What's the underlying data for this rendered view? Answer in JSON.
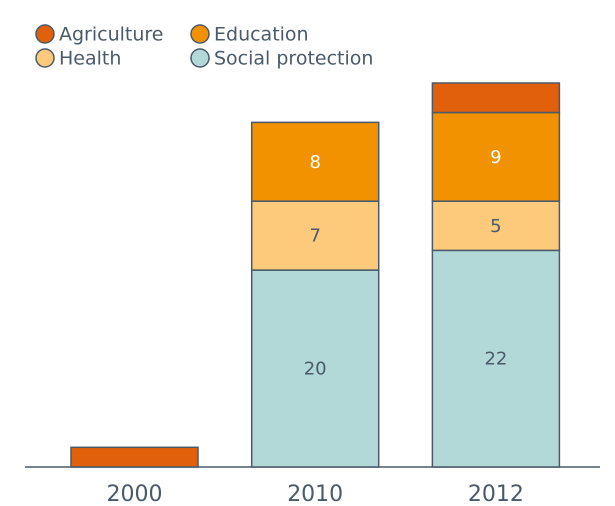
{
  "chart_data": {
    "type": "stacked_bar",
    "categories": [
      "2000",
      "2010",
      "2012"
    ],
    "series": [
      {
        "name": "Agriculture",
        "color": "#e0600c",
        "label_color": "#4a5a6a",
        "values": [
          2,
          0,
          3
        ]
      },
      {
        "name": "Education",
        "color": "#f39200",
        "label_color": "#ffffff",
        "values": [
          0,
          8,
          9
        ]
      },
      {
        "name": "Health",
        "color": "#fdc97b",
        "label_color": "#4a5a6a",
        "values": [
          0,
          7,
          5
        ]
      },
      {
        "name": "Social protection",
        "color": "#b2d9d8",
        "label_color": "#4a5a6a",
        "values": [
          0,
          20,
          22
        ]
      }
    ],
    "ylim": [
      0,
      39
    ]
  }
}
